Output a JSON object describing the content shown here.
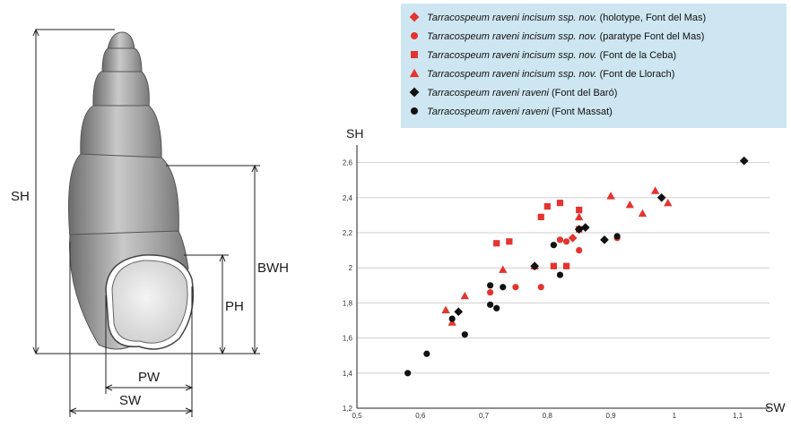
{
  "shell_diagram": {
    "labels": {
      "sh": "SH",
      "bwh": "BWH",
      "ph": "PH",
      "pw": "PW",
      "sw": "SW"
    }
  },
  "legend": {
    "items": [
      {
        "species": "Tarracospeum raveni incisum ssp. nov.",
        "note": "(holotype, Font del Mas)",
        "marker": "diamond",
        "color": "#e3342f"
      },
      {
        "species": "Tarracospeum raveni incisum ssp. nov.",
        "note": "(paratype Font del Mas)",
        "marker": "circle",
        "color": "#e3342f"
      },
      {
        "species": "Tarracospeum raveni incisum ssp. nov.",
        "note": "(Font de la Ceba)",
        "marker": "square",
        "color": "#e3342f"
      },
      {
        "species": "Tarracospeum raveni incisum ssp. nov.",
        "note": "(Font de Llorach)",
        "marker": "triangle",
        "color": "#e3342f"
      },
      {
        "species": "Tarracospeum raveni raveni",
        "note": "(Font del Baró)",
        "marker": "diamond",
        "color": "#111111"
      },
      {
        "species": "Tarracospeum raveni raveni",
        "note": "(Font Massat)",
        "marker": "circle",
        "color": "#111111"
      }
    ]
  },
  "chart_data": {
    "type": "scatter",
    "xlabel": "SW",
    "ylabel": "SH",
    "xlim": [
      0.5,
      1.15
    ],
    "ylim": [
      1.2,
      2.7
    ],
    "x_ticks": [
      "0,5",
      "0,6",
      "0,7",
      "0,8",
      "0,9",
      "1",
      "1,1"
    ],
    "y_ticks": [
      "1,2",
      "1,4",
      "1,6",
      "1,8",
      "2",
      "2,2",
      "2,4",
      "2,6"
    ],
    "grid": "horizontal",
    "series": [
      {
        "name": "Tarracospeum raveni incisum ssp. nov. (holotype, Font del Mas)",
        "marker": "diamond",
        "color": "#e3342f",
        "points": [
          [
            0.84,
            2.17
          ]
        ]
      },
      {
        "name": "Tarracospeum raveni incisum ssp. nov. (paratype Font del Mas)",
        "marker": "circle",
        "color": "#e3342f",
        "points": [
          [
            0.71,
            1.86
          ],
          [
            0.75,
            1.89
          ],
          [
            0.79,
            1.89
          ],
          [
            0.82,
            2.16
          ],
          [
            0.85,
            2.1
          ],
          [
            0.91,
            2.17
          ],
          [
            0.83,
            2.15
          ]
        ]
      },
      {
        "name": "Tarracospeum raveni incisum ssp. nov. (Font de la Ceba)",
        "marker": "square",
        "color": "#e3342f",
        "points": [
          [
            0.72,
            2.14
          ],
          [
            0.74,
            2.15
          ],
          [
            0.79,
            2.29
          ],
          [
            0.8,
            2.35
          ],
          [
            0.82,
            2.37
          ],
          [
            0.81,
            2.01
          ],
          [
            0.83,
            2.01
          ],
          [
            0.85,
            2.33
          ],
          [
            0.85,
            2.22
          ]
        ]
      },
      {
        "name": "Tarracospeum raveni incisum ssp. nov. (Font de Llorach)",
        "marker": "triangle",
        "color": "#e3342f",
        "points": [
          [
            0.64,
            1.76
          ],
          [
            0.65,
            1.69
          ],
          [
            0.67,
            1.84
          ],
          [
            0.73,
            1.99
          ],
          [
            0.78,
            2.01
          ],
          [
            0.85,
            2.29
          ],
          [
            0.9,
            2.41
          ],
          [
            0.93,
            2.36
          ],
          [
            0.95,
            2.31
          ],
          [
            0.97,
            2.44
          ],
          [
            0.99,
            2.37
          ]
        ]
      },
      {
        "name": "Tarracospeum raveni raveni (Font del Baró)",
        "marker": "diamond",
        "color": "#111111",
        "points": [
          [
            0.66,
            1.75
          ],
          [
            0.78,
            2.01
          ],
          [
            0.85,
            2.22
          ],
          [
            0.86,
            2.23
          ],
          [
            0.89,
            2.16
          ],
          [
            0.98,
            2.4
          ],
          [
            1.11,
            2.61
          ]
        ]
      },
      {
        "name": "Tarracospeum raveni raveni (Font Massat)",
        "marker": "circle",
        "color": "#111111",
        "points": [
          [
            0.58,
            1.4
          ],
          [
            0.61,
            1.51
          ],
          [
            0.65,
            1.71
          ],
          [
            0.67,
            1.62
          ],
          [
            0.71,
            1.79
          ],
          [
            0.72,
            1.77
          ],
          [
            0.73,
            1.89
          ],
          [
            0.71,
            1.9
          ],
          [
            0.81,
            2.13
          ],
          [
            0.82,
            1.96
          ],
          [
            0.91,
            2.18
          ]
        ]
      }
    ]
  }
}
